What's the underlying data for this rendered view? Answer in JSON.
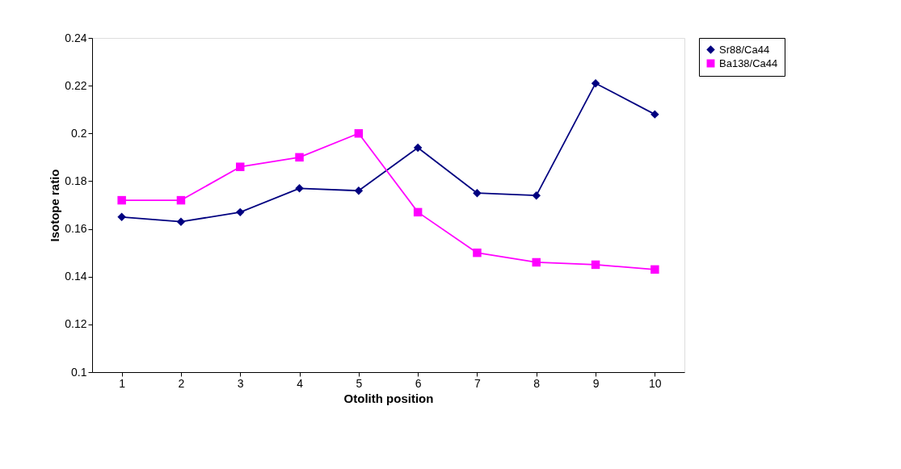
{
  "chart_data": {
    "type": "line",
    "xlabel": "Otolith position",
    "ylabel": "Isotope ratio",
    "categories": [
      "1",
      "2",
      "3",
      "4",
      "5",
      "6",
      "7",
      "8",
      "9",
      "10"
    ],
    "series": [
      {
        "name": "Sr88/Ca44",
        "color": "#000080",
        "marker": "diamond",
        "values": [
          0.165,
          0.163,
          0.167,
          0.177,
          0.176,
          0.194,
          0.175,
          0.174,
          0.221,
          0.208
        ]
      },
      {
        "name": "Ba138/Ca44",
        "color": "#ff00ff",
        "marker": "square",
        "values": [
          0.172,
          0.172,
          0.186,
          0.19,
          0.2,
          0.167,
          0.15,
          0.146,
          0.145,
          0.143
        ]
      }
    ],
    "ylim": [
      0.1,
      0.24
    ],
    "yticks": [
      0.1,
      0.12,
      0.14,
      0.16,
      0.18,
      0.2,
      0.22,
      0.24
    ],
    "grid": false,
    "legend": "right",
    "line_style": "solid"
  }
}
